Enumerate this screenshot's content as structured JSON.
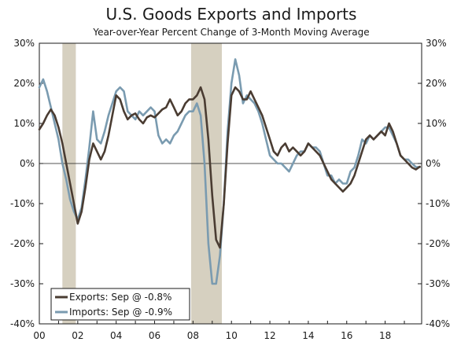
{
  "chart_data": {
    "type": "line",
    "title": "U.S. Goods Exports and Imports",
    "subtitle": "Year-over-Year Percent Change of 3-Month Moving Average",
    "xlabel": "",
    "ylabel": "",
    "xlim": [
      2000.0,
      2019.9
    ],
    "ylim": [
      -40,
      30
    ],
    "y_ticks": [
      30,
      20,
      10,
      0,
      -10,
      -20,
      -30,
      -40
    ],
    "y_tick_labels": [
      "30%",
      "20%",
      "10%",
      "0%",
      "-10%",
      "-20%",
      "-30%",
      "-40%"
    ],
    "x_ticks": [
      2000,
      2002,
      2004,
      2006,
      2008,
      2010,
      2012,
      2014,
      2016,
      2018
    ],
    "x_tick_labels": [
      "00",
      "02",
      "04",
      "06",
      "08",
      "10",
      "12",
      "14",
      "16",
      "18"
    ],
    "grid": false,
    "zero_line": true,
    "legend_position": "bottom-left",
    "recessions": [
      [
        2001.2,
        2001.9
      ],
      [
        2007.9,
        2009.5
      ]
    ],
    "colors": {
      "exports": "#4a3c32",
      "imports": "#7a9bb0",
      "recession": "#d6d0c0"
    },
    "series": [
      {
        "name": "Exports: Sep @ -0.8%",
        "key": "exports",
        "x": [
          2000.0,
          2000.2,
          2000.4,
          2000.6,
          2000.8,
          2001.0,
          2001.2,
          2001.4,
          2001.6,
          2001.8,
          2002.0,
          2002.2,
          2002.4,
          2002.6,
          2002.8,
          2003.0,
          2003.2,
          2003.4,
          2003.6,
          2003.8,
          2004.0,
          2004.2,
          2004.4,
          2004.6,
          2004.8,
          2005.0,
          2005.2,
          2005.4,
          2005.6,
          2005.8,
          2006.0,
          2006.2,
          2006.4,
          2006.6,
          2006.8,
          2007.0,
          2007.2,
          2007.4,
          2007.6,
          2007.8,
          2008.0,
          2008.2,
          2008.4,
          2008.6,
          2008.8,
          2009.0,
          2009.2,
          2009.4,
          2009.6,
          2009.8,
          2010.0,
          2010.2,
          2010.4,
          2010.6,
          2010.8,
          2011.0,
          2011.2,
          2011.4,
          2011.6,
          2011.8,
          2012.0,
          2012.2,
          2012.4,
          2012.6,
          2012.8,
          2013.0,
          2013.2,
          2013.4,
          2013.6,
          2013.8,
          2014.0,
          2014.2,
          2014.4,
          2014.6,
          2014.8,
          2015.0,
          2015.2,
          2015.4,
          2015.6,
          2015.8,
          2016.0,
          2016.2,
          2016.4,
          2016.6,
          2016.8,
          2017.0,
          2017.2,
          2017.4,
          2017.6,
          2017.8,
          2018.0,
          2018.2,
          2018.4,
          2018.6,
          2018.8,
          2019.0,
          2019.2,
          2019.4,
          2019.6,
          2019.8
        ],
        "values": [
          8.5,
          10,
          12,
          13.5,
          12,
          9,
          5,
          0,
          -5,
          -10,
          -15,
          -12,
          -6,
          1,
          5,
          3,
          1,
          3,
          7,
          12,
          17,
          16,
          13,
          11,
          12,
          12.5,
          11,
          10,
          11.5,
          12,
          11.5,
          12.5,
          13.5,
          14,
          16,
          14,
          12,
          13,
          15,
          16,
          16,
          17,
          19,
          16,
          6,
          -8,
          -19,
          -21,
          -10,
          5,
          17,
          19,
          18,
          16,
          16,
          18,
          16,
          14,
          12,
          9,
          6,
          3,
          2,
          4,
          5,
          3,
          4,
          3,
          2,
          3,
          5,
          4,
          3,
          2,
          0,
          -2,
          -4,
          -5,
          -6,
          -7,
          -6,
          -5,
          -3,
          0,
          3,
          6,
          7,
          6,
          7,
          8,
          7,
          10,
          8,
          5,
          2,
          1,
          0,
          -1,
          -1.5,
          -0.8
        ]
      },
      {
        "name": "Imports: Sep @ -0.9%",
        "key": "imports",
        "x": [
          2000.0,
          2000.2,
          2000.4,
          2000.6,
          2000.8,
          2001.0,
          2001.2,
          2001.4,
          2001.6,
          2001.8,
          2002.0,
          2002.2,
          2002.4,
          2002.6,
          2002.8,
          2003.0,
          2003.2,
          2003.4,
          2003.6,
          2003.8,
          2004.0,
          2004.2,
          2004.4,
          2004.6,
          2004.8,
          2005.0,
          2005.2,
          2005.4,
          2005.6,
          2005.8,
          2006.0,
          2006.2,
          2006.4,
          2006.6,
          2006.8,
          2007.0,
          2007.2,
          2007.4,
          2007.6,
          2007.8,
          2008.0,
          2008.2,
          2008.4,
          2008.6,
          2008.8,
          2009.0,
          2009.2,
          2009.4,
          2009.6,
          2009.8,
          2010.0,
          2010.2,
          2010.4,
          2010.6,
          2010.8,
          2011.0,
          2011.2,
          2011.4,
          2011.6,
          2011.8,
          2012.0,
          2012.2,
          2012.4,
          2012.6,
          2012.8,
          2013.0,
          2013.2,
          2013.4,
          2013.6,
          2013.8,
          2014.0,
          2014.2,
          2014.4,
          2014.6,
          2014.8,
          2015.0,
          2015.2,
          2015.4,
          2015.6,
          2015.8,
          2016.0,
          2016.2,
          2016.4,
          2016.6,
          2016.8,
          2017.0,
          2017.2,
          2017.4,
          2017.6,
          2017.8,
          2018.0,
          2018.2,
          2018.4,
          2018.6,
          2018.8,
          2019.0,
          2019.2,
          2019.4,
          2019.6,
          2019.8
        ],
        "values": [
          19,
          21,
          18,
          14,
          10,
          6,
          0,
          -4,
          -9,
          -12,
          -14,
          -11,
          -4,
          4,
          13,
          6,
          5,
          8,
          12,
          15,
          18,
          19,
          18,
          13,
          12,
          11,
          13,
          12,
          13,
          14,
          13,
          7,
          5,
          6,
          5,
          7,
          8,
          10,
          12,
          13,
          13,
          15,
          12,
          0,
          -20,
          -30,
          -30,
          -23,
          -10,
          8,
          20,
          26,
          22,
          15,
          17,
          16,
          15,
          13,
          10,
          6,
          2,
          1,
          0,
          0,
          -1,
          -2,
          0,
          2,
          3,
          3,
          5,
          4,
          4,
          3,
          0,
          -3,
          -3,
          -5,
          -4,
          -5,
          -5,
          -2,
          -1,
          2,
          6,
          5,
          7,
          6,
          7,
          8,
          9,
          9,
          7,
          5,
          2,
          1,
          1,
          0,
          -0.9,
          -0.9
        ]
      }
    ]
  }
}
